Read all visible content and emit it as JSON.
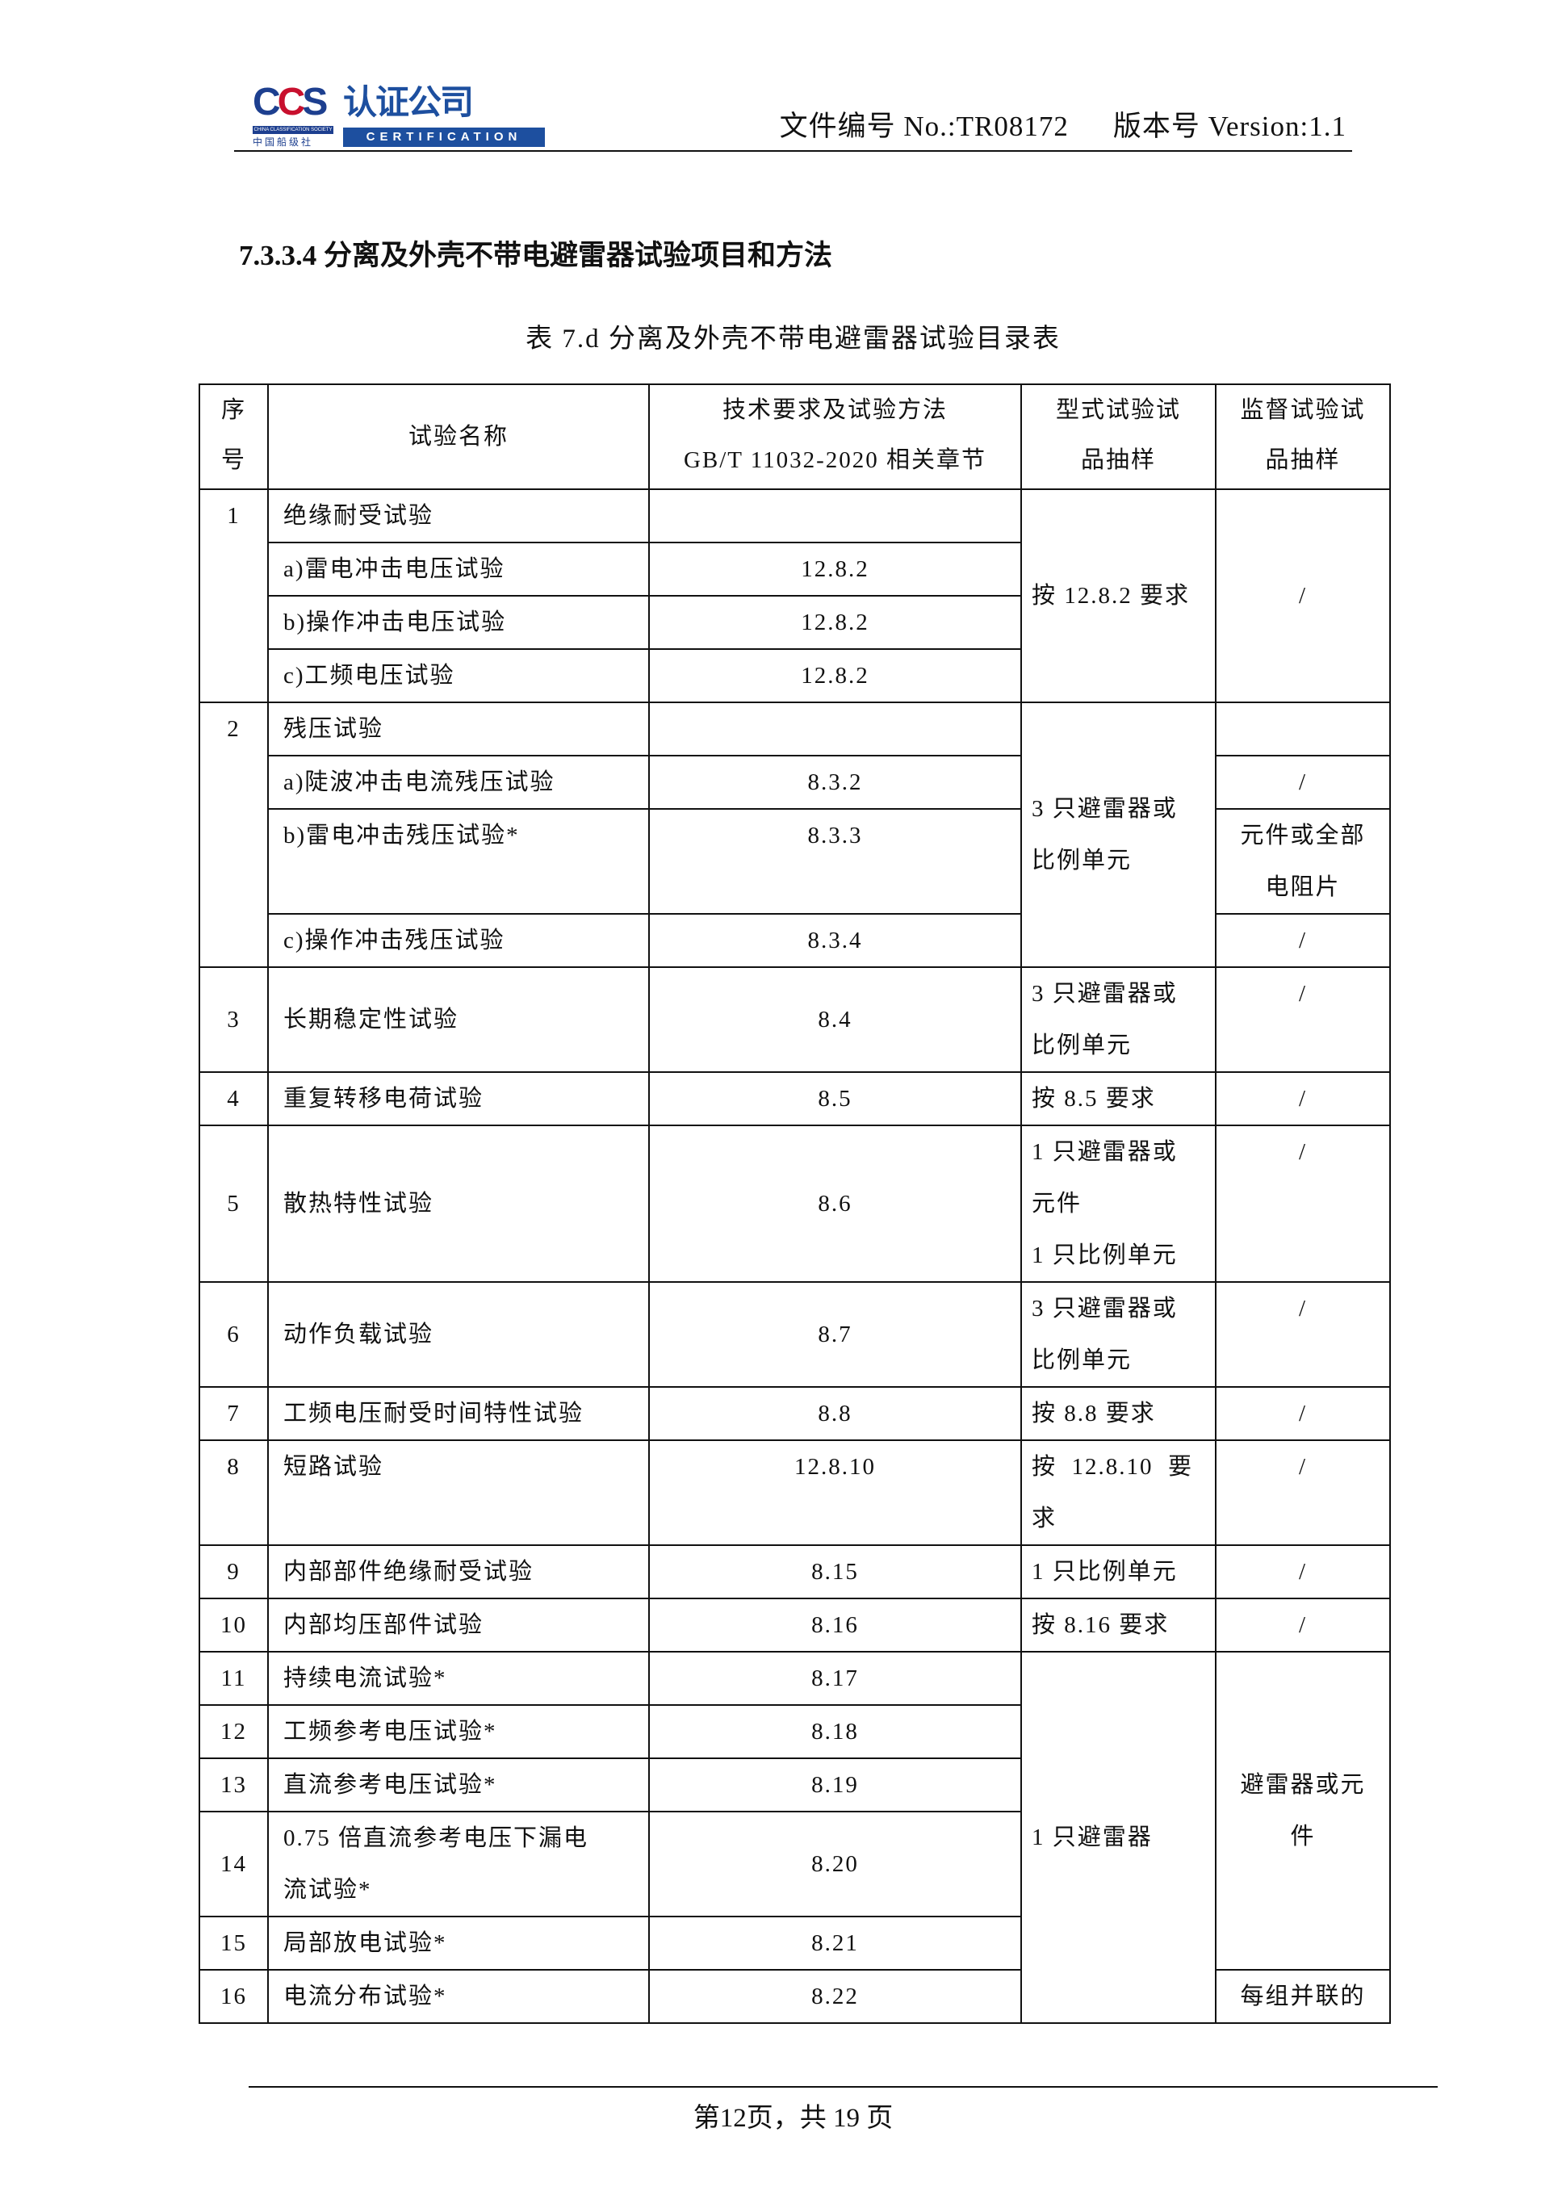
{
  "header": {
    "logo": {
      "mark": "CCS",
      "name": "认证公司",
      "society_en": "CHINA CLASSIFICATION SOCIETY",
      "society_cn": "中国船级社",
      "sub": "CERTIFICATION"
    },
    "doc_no": "文件编号 No.:TR08172",
    "version": "版本号 Version:1.1"
  },
  "section_heading": "7.3.3.4 分离及外壳不带电避雷器试验项目和方法",
  "table_caption": "表 7.d  分离及外壳不带电避雷器试验目录表",
  "table": {
    "headers": [
      "序\n号",
      "试验名称",
      "技术要求及试验方法\nGB/T 11032-2020 相关章节",
      "型式试验试\n品抽样",
      "监督试验试\n品抽样"
    ],
    "rows": {
      "r1": {
        "no": "1",
        "name": "绝缘耐受试验",
        "clause": "",
        "type": "按 12.8.2 要求",
        "sup": "/",
        "sub": [
          {
            "name": "a)雷电冲击电压试验",
            "clause": "12.8.2"
          },
          {
            "name": "b)操作冲击电压试验",
            "clause": "12.8.2"
          },
          {
            "name": "c)工频电压试验",
            "clause": "12.8.2"
          }
        ]
      },
      "r2": {
        "no": "2",
        "name": "残压试验",
        "clause": "",
        "type": "3 只避雷器或\n比例单元",
        "sup": "",
        "sub": [
          {
            "name": "a)陡波冲击电流残压试验",
            "clause": "8.3.2",
            "sup": "/"
          },
          {
            "name": "b)雷电冲击残压试验*",
            "clause": "8.3.3",
            "sup": "元件或全部\n电阻片"
          },
          {
            "name": "c)操作冲击残压试验",
            "clause": "8.3.4",
            "sup": "/"
          }
        ]
      },
      "r3": {
        "no": "3",
        "name": "长期稳定性试验",
        "clause": "8.4",
        "type": "3 只避雷器或\n比例单元",
        "sup": "/"
      },
      "r4": {
        "no": "4",
        "name": "重复转移电荷试验",
        "clause": "8.5",
        "type": "按 8.5 要求",
        "sup": "/"
      },
      "r5": {
        "no": "5",
        "name": "散热特性试验",
        "clause": "8.6",
        "type": "1 只避雷器或\n元件\n1 只比例单元",
        "sup": "/"
      },
      "r6": {
        "no": "6",
        "name": "动作负载试验",
        "clause": "8.7",
        "type": "3 只避雷器或\n比例单元",
        "sup": "/"
      },
      "r7": {
        "no": "7",
        "name": "工频电压耐受时间特性试验",
        "clause": "8.8",
        "type": "按 8.8 要求",
        "sup": "/"
      },
      "r8": {
        "no": "8",
        "name": "短路试验",
        "clause": "12.8.10",
        "type": "按  12.8.10  要\n求",
        "sup": "/"
      },
      "r9": {
        "no": "9",
        "name": "内部部件绝缘耐受试验",
        "clause": "8.15",
        "type": "1 只比例单元",
        "sup": "/"
      },
      "r10": {
        "no": "10",
        "name": "内部均压部件试验",
        "clause": "8.16",
        "type": "按 8.16 要求",
        "sup": "/"
      },
      "r11": {
        "no": "11",
        "name": "持续电流试验*",
        "clause": "8.17"
      },
      "r12": {
        "no": "12",
        "name": "工频参考电压试验*",
        "clause": "8.18"
      },
      "r13": {
        "no": "13",
        "name": "直流参考电压试验*",
        "clause": "8.19"
      },
      "r14": {
        "no": "14",
        "name": "0.75 倍直流参考电压下漏电\n流试验*",
        "clause": "8.20"
      },
      "r15": {
        "no": "15",
        "name": "局部放电试验*",
        "clause": "8.21"
      },
      "r16": {
        "no": "16",
        "name": "电流分布试验*",
        "clause": "8.22",
        "sup": "每组并联的"
      },
      "group_11_16": {
        "type": "1 只避雷器",
        "sup": "避雷器或元\n件"
      }
    }
  },
  "footer": {
    "page": "第12页，共 19 页"
  }
}
